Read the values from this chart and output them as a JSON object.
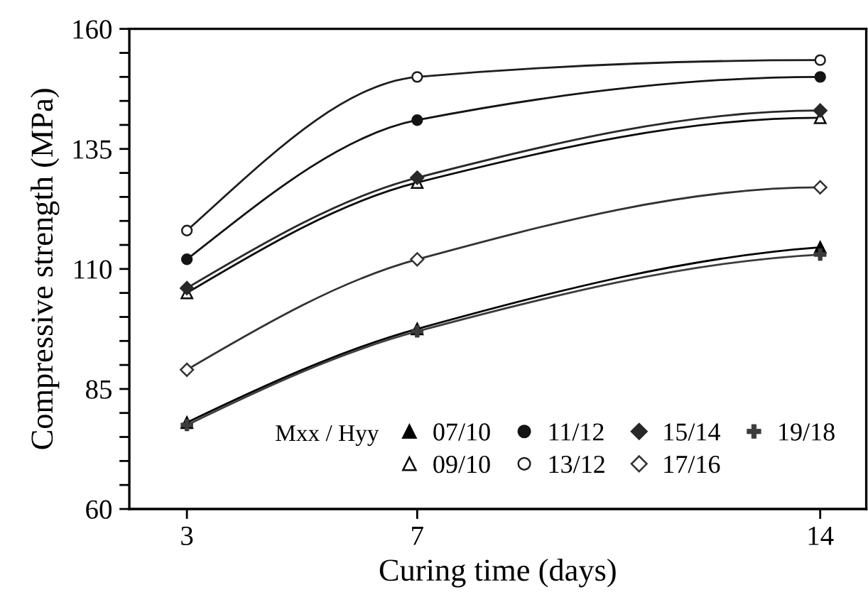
{
  "chart_data": {
    "type": "line",
    "xlabel": "Curing time (days)",
    "ylabel": "Compressive strength (MPa)",
    "legend_title": "Mxx / Hyy",
    "x": [
      3,
      7,
      14
    ],
    "series": [
      {
        "name": "07/10",
        "color": "#000000",
        "marker": "triangle",
        "values": [
          78,
          97.5,
          114.5
        ]
      },
      {
        "name": "09/10",
        "color": "#0a0a0a",
        "marker": "triangle-open",
        "values": [
          105,
          128,
          141.5
        ]
      },
      {
        "name": "11/12",
        "color": "#141414",
        "marker": "circle",
        "values": [
          112,
          141,
          150
        ]
      },
      {
        "name": "13/12",
        "color": "#1e1e1e",
        "marker": "circle-open",
        "values": [
          118,
          150,
          153.5
        ]
      },
      {
        "name": "15/14",
        "color": "#282828",
        "marker": "diamond",
        "values": [
          106,
          129,
          143
        ]
      },
      {
        "name": "17/16",
        "color": "#323232",
        "marker": "diamond-open",
        "values": [
          89,
          112,
          127
        ]
      },
      {
        "name": "19/18",
        "color": "#3c3c3c",
        "marker": "cross",
        "values": [
          77.5,
          97,
          113
        ]
      }
    ],
    "xlim": [
      2,
      14.8
    ],
    "xticks": [
      3,
      7,
      14
    ],
    "ylim": [
      60,
      160
    ],
    "yticks": [
      60,
      {
        "value": 65,
        "label": null
      },
      {
        "value": 70,
        "label": null
      },
      {
        "value": 75,
        "label": null
      },
      {
        "value": 80,
        "label": null
      },
      85,
      {
        "value": 90,
        "label": null
      },
      {
        "value": 95,
        "label": null
      },
      {
        "value": 100,
        "label": null
      },
      {
        "value": 105,
        "label": null
      },
      110,
      {
        "value": 115,
        "label": null
      },
      {
        "value": 120,
        "label": null
      },
      {
        "value": 125,
        "label": null
      },
      {
        "value": 130,
        "label": null
      },
      135,
      {
        "value": 140,
        "label": null
      },
      {
        "value": 145,
        "label": null
      },
      {
        "value": 150,
        "label": null
      },
      {
        "value": 155,
        "label": null
      },
      160
    ],
    "grid": false,
    "legend": "bottom right",
    "line_style": "solid"
  }
}
